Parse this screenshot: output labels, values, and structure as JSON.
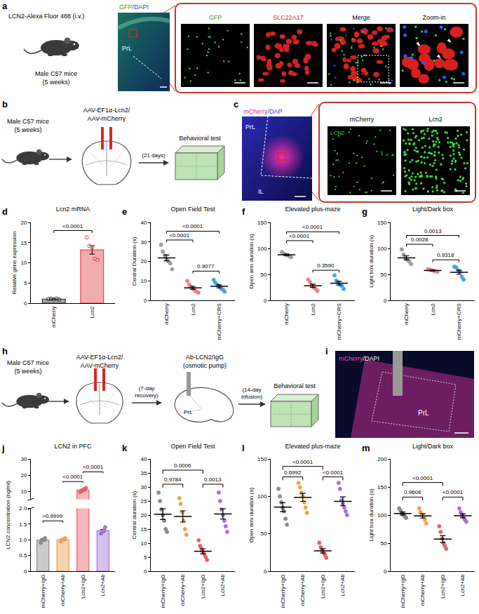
{
  "figure": {
    "a": {
      "letter": "a",
      "tracer": "LCN2-Alexa Fluor 488 (i.v.)",
      "subject": [
        "Male C57 mice",
        "(5 weeks)"
      ],
      "stain": [
        "GFP",
        "/DAPI"
      ],
      "region": "PrL",
      "channels": [
        "GFP",
        "SLC22A17",
        "Merge",
        "Zoom-in"
      ]
    },
    "b": {
      "letter": "b",
      "subject": [
        "Male C57 mice",
        "(5 weeks)"
      ],
      "virus": [
        "AAV-EF1α-Lcn2/",
        "AAV-mCherry"
      ],
      "interval": "(21 days)",
      "test": "Behavioral test"
    },
    "c": {
      "letter": "c",
      "stain": [
        "mCherry",
        "/DAP"
      ],
      "regions": [
        "PrL",
        "IL"
      ],
      "channels": [
        "mCherry",
        "Lcn2"
      ],
      "inset_stain": "LCN2"
    },
    "h": {
      "letter": "h",
      "subject": [
        "Male C57 mice",
        "(5 weeks)"
      ],
      "virus": [
        "AAV-EF1α-Lcn2/",
        "AAV-mCherry"
      ],
      "recovery": "(7-day recovery)",
      "infusion": [
        "Ab-LCN2/IgG",
        "(osmotic pump)"
      ],
      "region": "PrL",
      "interval": "(14-day infusion)",
      "test": "Behavioral test"
    },
    "i": {
      "letter": "i",
      "stain": [
        "mCherry",
        "/DAPI"
      ],
      "region": "PrL"
    }
  },
  "chart_data": [
    {
      "letter": "d",
      "type": "bar",
      "title": "Lcn2 mRNA",
      "ylabel": "Relative gene expression",
      "categories": [
        "mCherry",
        "Lcn2"
      ],
      "colors": [
        "#333333",
        "#e0474c"
      ],
      "marker": "circle-open",
      "points": [
        [
          1.0,
          1.05,
          0.95,
          1.1,
          0.9
        ],
        [
          16.3,
          14.2,
          13.8,
          11.0,
          10.7
        ]
      ],
      "means": [
        1.0,
        13.2
      ],
      "sem": [
        0.04,
        1.05
      ],
      "ylim": [
        0,
        20
      ],
      "yticks": [
        0,
        5,
        10,
        15,
        20
      ],
      "grid": false,
      "comparisons": [
        {
          "from": 0,
          "to": 1,
          "label": "<0.0001",
          "y": 18
        }
      ]
    },
    {
      "letter": "e",
      "type": "dot",
      "title": "Open Field Test",
      "ylabel": "Central Duration (s)",
      "categories": [
        "mCherry",
        "Lcn2",
        "mCherry+CRS"
      ],
      "colors": [
        "#9e9e9e",
        "#ef7f84",
        "#4aa3df"
      ],
      "marker": "circle",
      "points": [
        [
          28.5,
          25,
          23,
          21,
          20,
          19,
          16
        ],
        [
          10,
          8,
          7,
          6,
          5,
          4.5,
          4
        ],
        [
          10.5,
          9,
          8,
          7,
          6,
          5.5,
          4.5
        ]
      ],
      "means": [
        21.8,
        6.4,
        7.2
      ],
      "sem": [
        1.5,
        0.8,
        0.8
      ],
      "ylim": [
        0,
        40
      ],
      "yticks": [
        0,
        10,
        20,
        30,
        40
      ],
      "grid": false,
      "comparisons": [
        {
          "from": 0,
          "to": 1,
          "label": "<0.0001",
          "y": 31
        },
        {
          "from": 0,
          "to": 2,
          "label": "<0.0001",
          "y": 35.5
        },
        {
          "from": 1,
          "to": 2,
          "label": "0.9077",
          "y": 15
        }
      ]
    },
    {
      "letter": "f",
      "type": "dot",
      "title": "Elevated plus-maze",
      "ylabel": "Open arm duration (s)",
      "categories": [
        "mCherry",
        "Lcn2",
        "mCherry+CRS"
      ],
      "colors": [
        "#9e9e9e",
        "#ef7f84",
        "#4aa3df"
      ],
      "marker": "circle",
      "points": [
        [
          93,
          90,
          88,
          87,
          85,
          83
        ],
        [
          40,
          35,
          28,
          25,
          22,
          18
        ],
        [
          48,
          38,
          33,
          30,
          28,
          22
        ]
      ],
      "means": [
        87.7,
        28,
        33
      ],
      "sem": [
        1.5,
        3.3,
        3.6
      ],
      "ylim": [
        0,
        150
      ],
      "yticks": [
        0,
        50,
        100,
        150
      ],
      "grid": false,
      "comparisons": [
        {
          "from": 0,
          "to": 1,
          "label": "<0.0001",
          "y": 115
        },
        {
          "from": 0,
          "to": 2,
          "label": "<0.0001",
          "y": 132
        },
        {
          "from": 1,
          "to": 2,
          "label": "0.3590",
          "y": 58
        }
      ]
    },
    {
      "letter": "g",
      "type": "dot",
      "title": "Light/Dark box",
      "ylabel": "Light box duration (s)",
      "categories": [
        "mCherry",
        "Lcn2",
        "mCherry+CRS"
      ],
      "colors": [
        "#9e9e9e",
        "#ef7f84",
        "#4aa3df"
      ],
      "marker": "circle",
      "points": [
        [
          98,
          88,
          82,
          78,
          75,
          70
        ],
        [
          60,
          59,
          58,
          57,
          56,
          55
        ],
        [
          65,
          63,
          58,
          55,
          45,
          40
        ]
      ],
      "means": [
        81.8,
        57.5,
        54
      ],
      "sem": [
        4,
        0.8,
        4
      ],
      "ylim": [
        0,
        150
      ],
      "yticks": [
        0,
        50,
        100,
        150
      ],
      "grid": false,
      "comparisons": [
        {
          "from": 0,
          "to": 2,
          "label": "0.0013",
          "y": 125
        },
        {
          "from": 0,
          "to": 1,
          "label": "0.0028",
          "y": 108
        },
        {
          "from": 1,
          "to": 2,
          "label": "0.9318",
          "y": 78
        }
      ]
    },
    {
      "letter": "j",
      "type": "bar",
      "title": "LCN2 in PFC",
      "ylabel": "LCN2 concentration (ng/ml)",
      "categories": [
        "mCherry+IgG",
        "mCherry+Ab",
        "Lcn2+IgG",
        "Lcn2+Ab"
      ],
      "colors": [
        "#8c8c8c",
        "#f0a04b",
        "#e8606a",
        "#a874d6"
      ],
      "marker": "circle",
      "points": [
        [
          0.9,
          1.0,
          1.0,
          1.05
        ],
        [
          0.95,
          1.0,
          1.02,
          1.05
        ],
        [
          9.5,
          10.2,
          10.8,
          11.4,
          12.0
        ],
        [
          1.2,
          1.25,
          1.3,
          1.4
        ]
      ],
      "means": [
        0.99,
        1.0,
        10.8,
        1.29
      ],
      "sem": [
        0.03,
        0.02,
        0.45,
        0.04
      ],
      "ylim": [
        0,
        2.0
      ],
      "yticks": [
        0,
        0.5,
        {
          "value": 1,
          "label": "1.0"
        },
        1.5,
        {
          "value": 2,
          "label": "2.0"
        }
      ],
      "y2lim": [
        5,
        30
      ],
      "y2ticks": [
        10,
        20,
        30
      ],
      "grid": false,
      "comparisons": [
        {
          "from": 0,
          "to": 1,
          "label": ">0.9999",
          "y": 1.6
        },
        {
          "from": 1,
          "to": 2,
          "label": "<0.0001",
          "y": 16
        },
        {
          "from": 2,
          "to": 3,
          "label": "<0.0001",
          "y": 22
        }
      ]
    },
    {
      "letter": "k",
      "type": "dot",
      "title": "Open Field Test",
      "ylabel": "Central duration (s)",
      "categories": [
        "mCherry+IgG",
        "mCherry+Ab",
        "Lcn2+IgG",
        "Lcn2+Ab"
      ],
      "colors": [
        "#8c8c8c",
        "#f0a04b",
        "#e8606a",
        "#a874d6"
      ],
      "marker": "circle",
      "points": [
        [
          28,
          25,
          22,
          20,
          18,
          15,
          14
        ],
        [
          26,
          24,
          21,
          18,
          15,
          13
        ],
        [
          11,
          9,
          8,
          7,
          6,
          5,
          4
        ],
        [
          28,
          25,
          22,
          20,
          18,
          16,
          14
        ]
      ],
      "means": [
        20.3,
        19.5,
        7.1,
        20.4
      ],
      "sem": [
        1.9,
        2.0,
        0.9,
        1.8
      ],
      "ylim": [
        0,
        40
      ],
      "yticks": [
        0,
        5,
        10,
        15,
        20,
        25,
        30,
        35,
        40
      ],
      "grid": false,
      "comparisons": [
        {
          "from": 0,
          "to": 1,
          "label": "0.9784",
          "y": 31
        },
        {
          "from": 0,
          "to": 2,
          "label": "0.0006",
          "y": 36
        },
        {
          "from": 2,
          "to": 3,
          "label": "0.0013",
          "y": 31
        }
      ]
    },
    {
      "letter": "l",
      "type": "dot",
      "title": "Elevated plus-maze",
      "ylabel": "Open arm duration (s)",
      "categories": [
        "mCherry+IgG",
        "mCherry+Ab",
        "Lcn2+IgG",
        "Lcn2+Ab"
      ],
      "colors": [
        "#8c8c8c",
        "#f0a04b",
        "#e8606a",
        "#a874d6"
      ],
      "marker": "circle",
      "points": [
        [
          110,
          100,
          92,
          85,
          80,
          70,
          62
        ],
        [
          118,
          112,
          105,
          100,
          92,
          85,
          78
        ],
        [
          38,
          32,
          28,
          25,
          22,
          18
        ],
        [
          118,
          110,
          95,
          90,
          85,
          80,
          75
        ]
      ],
      "means": [
        85.6,
        98.6,
        27.2,
        93.3
      ],
      "sem": [
        6,
        5.3,
        3,
        5.9
      ],
      "ylim": [
        0,
        150
      ],
      "yticks": [
        0,
        50,
        100,
        150
      ],
      "grid": false,
      "comparisons": [
        {
          "from": 0,
          "to": 1,
          "label": "0.6992",
          "y": 126
        },
        {
          "from": 0,
          "to": 2,
          "label": "<0.0001",
          "y": 140
        },
        {
          "from": 2,
          "to": 3,
          "label": "<0.0001",
          "y": 126
        }
      ]
    },
    {
      "letter": "m",
      "type": "dot",
      "title": "Light/Dark box",
      "ylabel": "Light box duration (s)",
      "categories": [
        "mCherry+IgG",
        "mCherry+Ab",
        "Lcn2+IgG",
        "Lcn2+Ab"
      ],
      "colors": [
        "#8c8c8c",
        "#f0a04b",
        "#e8606a",
        "#a874d6"
      ],
      "marker": "circle",
      "points": [
        [
          112,
          108,
          104,
          100,
          98,
          95
        ],
        [
          112,
          105,
          100,
          97,
          92,
          85
        ],
        [
          80,
          70,
          58,
          50,
          45,
          40
        ],
        [
          112,
          105,
          100,
          96,
          92,
          88
        ]
      ],
      "means": [
        102.8,
        98.5,
        57.2,
        98.8
      ],
      "sem": [
        2.6,
        3.8,
        6.2,
        3.6
      ],
      "ylim": [
        0,
        200
      ],
      "yticks": [
        0,
        50,
        100,
        150,
        200
      ],
      "grid": false,
      "comparisons": [
        {
          "from": 0,
          "to": 2,
          "label": "<0.0001",
          "y": 158
        },
        {
          "from": 0,
          "to": 1,
          "label": "0.9606",
          "y": 132
        },
        {
          "from": 2,
          "to": 3,
          "label": "<0.0001",
          "y": 132
        }
      ]
    }
  ]
}
